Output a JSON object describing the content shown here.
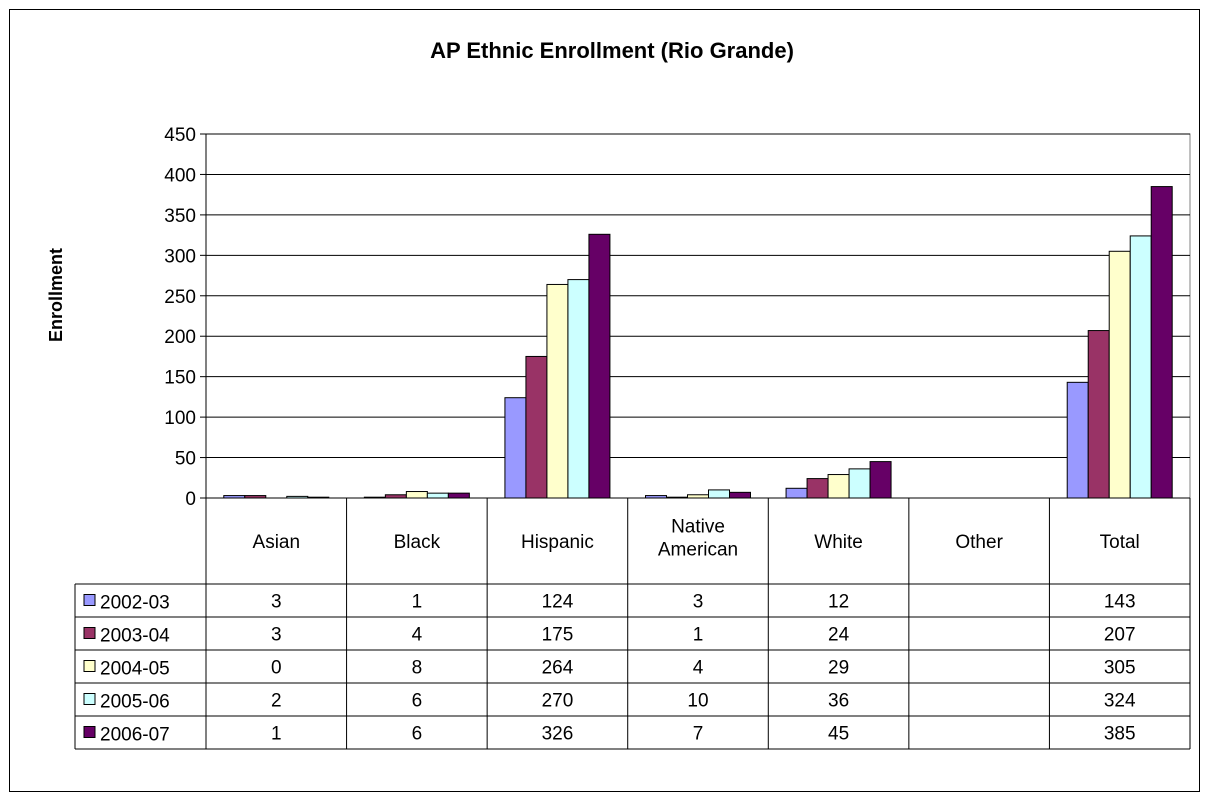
{
  "chart_data": {
    "type": "bar",
    "title": "AP Ethnic Enrollment (Rio Grande)",
    "xlabel": "",
    "ylabel": "Enrollment",
    "ylim": [
      0,
      450
    ],
    "yticks": [
      "0",
      "50",
      "100",
      "150",
      "200",
      "250",
      "300",
      "350",
      "400",
      "450"
    ],
    "grid": true,
    "legend": "data-table-left",
    "categories": [
      "Asian",
      "Black",
      "Hispanic",
      "Native American",
      "White",
      "Other",
      "Total"
    ],
    "series": [
      {
        "name": "2002-03",
        "color": "#9999FF",
        "values": [
          3,
          1,
          124,
          3,
          12,
          null,
          143
        ]
      },
      {
        "name": "2003-04",
        "color": "#993366",
        "values": [
          3,
          4,
          175,
          1,
          24,
          null,
          207
        ]
      },
      {
        "name": "2004-05",
        "color": "#FFFFCC",
        "values": [
          0,
          8,
          264,
          4,
          29,
          null,
          305
        ]
      },
      {
        "name": "2005-06",
        "color": "#CCFFFF",
        "values": [
          2,
          6,
          270,
          10,
          36,
          null,
          324
        ]
      },
      {
        "name": "2006-07",
        "color": "#660066",
        "values": [
          1,
          6,
          326,
          7,
          45,
          null,
          385
        ]
      }
    ]
  }
}
